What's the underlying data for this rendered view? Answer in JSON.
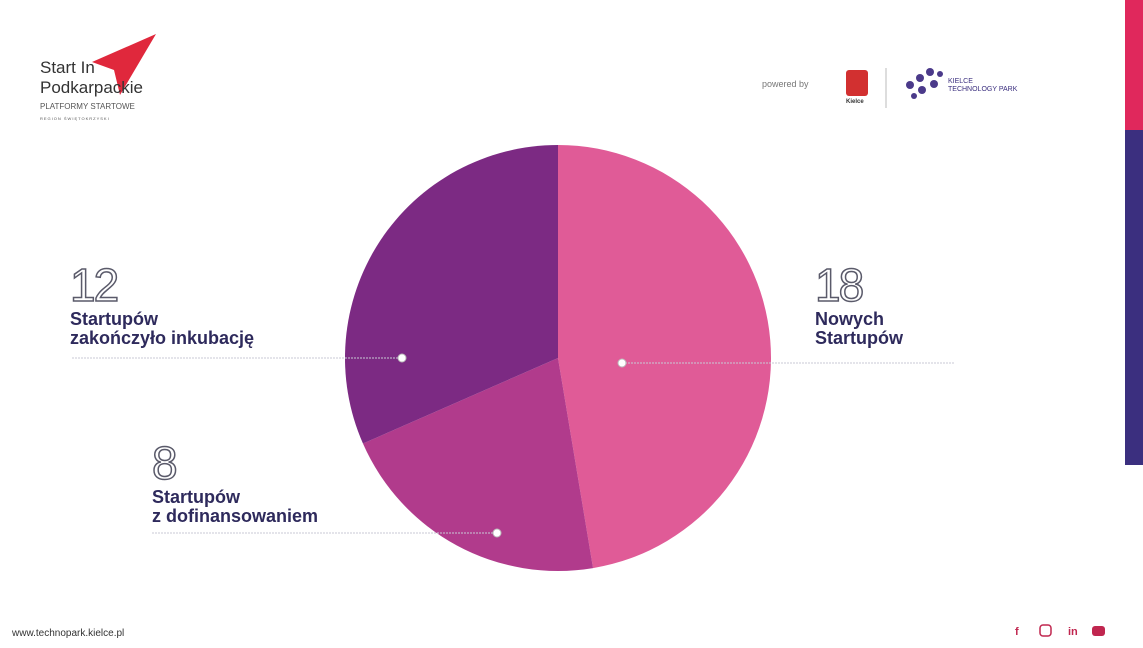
{
  "header": {
    "brand_line1": "Start In",
    "brand_line2": "Podkarpackie",
    "brand_sub": "PLATFORMY STARTOWE",
    "brand_region": "REGION ŚWIĘTOKRZYSKI",
    "powered_by": "powered by",
    "city": "Kielce",
    "park": "KIELCE\nTECHNOLOGY PARK"
  },
  "footer": {
    "url": "www.technopark.kielce.pl"
  },
  "chart_data": {
    "type": "pie",
    "categories": [
      "Nowych\nStartupów",
      "Startupów\nz dofinansowaniem",
      "Startupów\nzakończyło inkubację"
    ],
    "values": [
      18,
      8,
      12
    ],
    "colors": [
      "#e05b97",
      "#b13b8c",
      "#7c2a83"
    ]
  }
}
